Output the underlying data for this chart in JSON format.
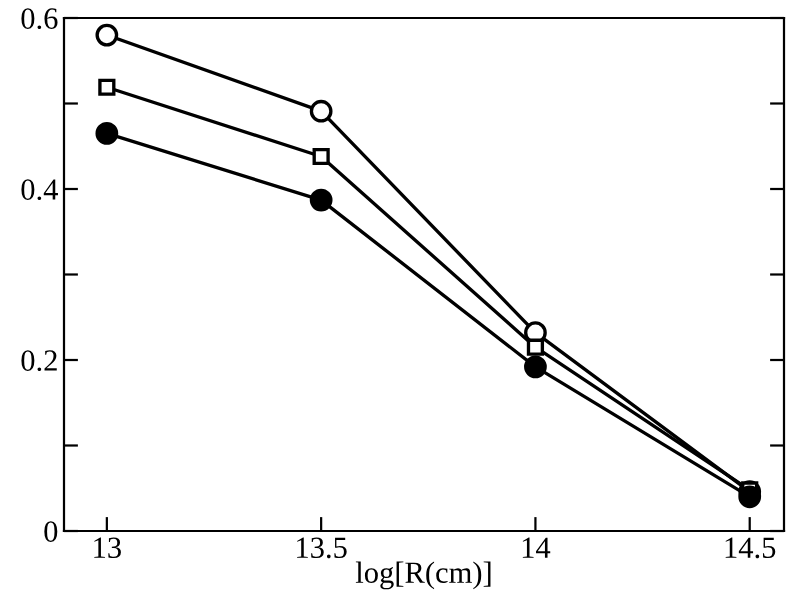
{
  "chart_data": {
    "type": "line",
    "xlabel": "log[R(cm)]",
    "x": [
      13,
      13.5,
      14,
      14.5
    ],
    "series": [
      {
        "color": "#000000",
        "marker": "circle",
        "values": [
          0.58,
          0.491,
          0.232,
          0.046
        ]
      },
      {
        "color": "#000000",
        "marker": "square",
        "values": [
          0.519,
          0.438,
          0.215,
          0.048
        ]
      },
      {
        "color": "#000000",
        "marker": "circle",
        "values": [
          0.465,
          0.387,
          0.192,
          0.04
        ]
      }
    ],
    "xlim": [
      12.9,
      14.58
    ],
    "ylim": [
      0,
      0.6
    ],
    "xticks": [
      13,
      13.5,
      14,
      14.5
    ],
    "yticks": [
      0,
      {
        "value": 0.1,
        "label": null
      },
      0.2,
      {
        "value": 0.3,
        "label": null
      },
      0.4,
      {
        "value": 0.5,
        "label": null
      },
      0.6
    ],
    "grid": false,
    "legend": false,
    "line_style": "solid"
  }
}
